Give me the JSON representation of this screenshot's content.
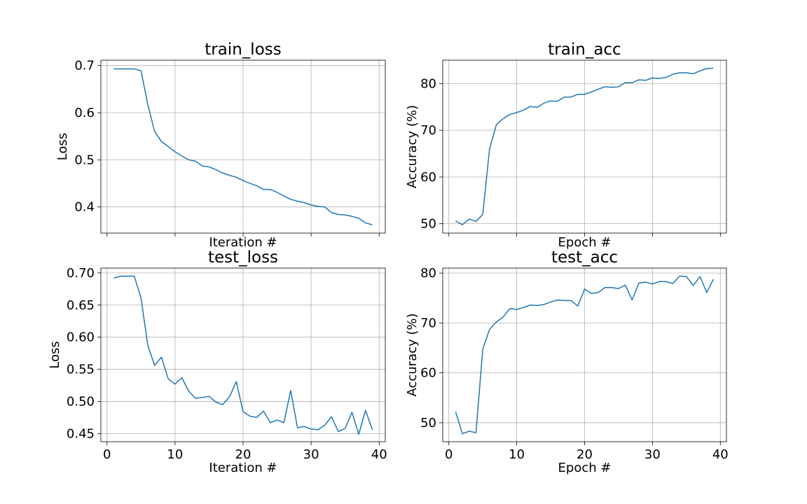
{
  "colors": {
    "series": "#1f77b4",
    "grid": "#b0b0b0",
    "axis": "#000000"
  },
  "chart_data": [
    {
      "id": "train_loss",
      "type": "line",
      "title": "train_loss",
      "xlabel": "Iteration #",
      "ylabel": "Loss",
      "grid": true,
      "xlim": [
        -0.9,
        40.9
      ],
      "ylim": [
        0.3444,
        0.7114
      ],
      "xticks": [
        0,
        10,
        20,
        30,
        40
      ],
      "show_xtick_labels": false,
      "yticks": [
        0.4,
        0.5,
        0.6,
        0.7
      ],
      "ytick_labels": [
        "0.4",
        "0.5",
        "0.6",
        "0.7"
      ],
      "series": [
        {
          "x": [
            1,
            2,
            3,
            4,
            5,
            6,
            7,
            8,
            9,
            10,
            11,
            12,
            13,
            14,
            15,
            16,
            17,
            18,
            19,
            20,
            21,
            22,
            23,
            24,
            25,
            26,
            27,
            28,
            29,
            30,
            31,
            32,
            33,
            34,
            35,
            36,
            37,
            38,
            39
          ],
          "values": [
            0.693,
            0.693,
            0.693,
            0.693,
            0.689,
            0.617,
            0.56,
            0.539,
            0.528,
            0.517,
            0.508,
            0.5,
            0.497,
            0.487,
            0.485,
            0.479,
            0.472,
            0.467,
            0.463,
            0.456,
            0.45,
            0.445,
            0.437,
            0.437,
            0.431,
            0.423,
            0.416,
            0.412,
            0.409,
            0.404,
            0.401,
            0.4,
            0.388,
            0.384,
            0.383,
            0.38,
            0.376,
            0.366,
            0.362
          ]
        }
      ]
    },
    {
      "id": "train_acc",
      "type": "line",
      "title": "train_acc",
      "xlabel": "Epoch #",
      "ylabel": "Accuracy (%)",
      "grid": true,
      "xlim": [
        -0.9,
        40.9
      ],
      "ylim": [
        48.0,
        85.0
      ],
      "xticks": [
        0,
        10,
        20,
        30,
        40
      ],
      "show_xtick_labels": false,
      "yticks": [
        50,
        60,
        70,
        80
      ],
      "ytick_labels": [
        "50",
        "60",
        "70",
        "80"
      ],
      "series": [
        {
          "x": [
            1,
            2,
            3,
            4,
            5,
            6,
            7,
            8,
            9,
            10,
            11,
            12,
            13,
            14,
            15,
            16,
            17,
            18,
            19,
            20,
            21,
            22,
            23,
            24,
            25,
            26,
            27,
            28,
            29,
            30,
            31,
            32,
            33,
            34,
            35,
            36,
            37,
            38,
            39
          ],
          "values": [
            50.6,
            49.8,
            51.0,
            50.5,
            52.0,
            66.0,
            71.2,
            72.5,
            73.4,
            73.8,
            74.3,
            75.1,
            74.9,
            75.8,
            76.3,
            76.2,
            77.1,
            77.1,
            77.7,
            77.7,
            78.2,
            78.8,
            79.3,
            79.2,
            79.3,
            80.2,
            80.2,
            80.8,
            80.7,
            81.2,
            81.1,
            81.3,
            82.0,
            82.3,
            82.3,
            82.1,
            82.7,
            83.2,
            83.3
          ]
        }
      ]
    },
    {
      "id": "test_loss",
      "type": "line",
      "title": "test_loss",
      "xlabel": "Iteration #",
      "ylabel": "Loss",
      "grid": true,
      "xlim": [
        -0.9,
        40.9
      ],
      "ylim": [
        0.4373,
        0.7075
      ],
      "xticks": [
        0,
        10,
        20,
        30,
        40
      ],
      "show_xtick_labels": true,
      "xtick_labels": [
        "0",
        "10",
        "20",
        "30",
        "40"
      ],
      "yticks": [
        0.45,
        0.5,
        0.55,
        0.6,
        0.65,
        0.7
      ],
      "ytick_labels": [
        "0.45",
        "0.50",
        "0.55",
        "0.60",
        "0.65",
        "0.70"
      ],
      "series": [
        {
          "x": [
            1,
            2,
            3,
            4,
            5,
            6,
            7,
            8,
            9,
            10,
            11,
            12,
            13,
            14,
            15,
            16,
            17,
            18,
            19,
            20,
            21,
            22,
            23,
            24,
            25,
            26,
            27,
            28,
            29,
            30,
            31,
            32,
            33,
            34,
            35,
            36,
            37,
            38,
            39
          ],
          "values": [
            0.692,
            0.695,
            0.695,
            0.695,
            0.661,
            0.587,
            0.556,
            0.569,
            0.535,
            0.527,
            0.537,
            0.516,
            0.505,
            0.506,
            0.508,
            0.499,
            0.495,
            0.507,
            0.531,
            0.484,
            0.477,
            0.475,
            0.485,
            0.467,
            0.471,
            0.467,
            0.517,
            0.459,
            0.461,
            0.457,
            0.456,
            0.463,
            0.476,
            0.453,
            0.458,
            0.483,
            0.449,
            0.486,
            0.456
          ]
        }
      ]
    },
    {
      "id": "test_acc",
      "type": "line",
      "title": "test_acc",
      "xlabel": "Epoch #",
      "ylabel": "Accuracy (%)",
      "grid": true,
      "xlim": [
        -0.9,
        40.9
      ],
      "ylim": [
        46.2,
        81.0
      ],
      "xticks": [
        0,
        10,
        20,
        30,
        40
      ],
      "show_xtick_labels": true,
      "xtick_labels": [
        "0",
        "10",
        "20",
        "30",
        "40"
      ],
      "yticks": [
        50,
        60,
        70,
        80
      ],
      "ytick_labels": [
        "50",
        "60",
        "70",
        "80"
      ],
      "series": [
        {
          "x": [
            1,
            2,
            3,
            4,
            5,
            6,
            7,
            8,
            9,
            10,
            11,
            12,
            13,
            14,
            15,
            16,
            17,
            18,
            19,
            20,
            21,
            22,
            23,
            24,
            25,
            26,
            27,
            28,
            29,
            30,
            31,
            32,
            33,
            34,
            35,
            36,
            37,
            38,
            39
          ],
          "values": [
            52.2,
            47.8,
            48.3,
            48.0,
            64.8,
            68.7,
            70.2,
            71.2,
            72.9,
            72.7,
            73.1,
            73.6,
            73.5,
            73.7,
            74.2,
            74.6,
            74.5,
            74.5,
            73.4,
            76.8,
            75.9,
            76.1,
            77.1,
            77.1,
            76.9,
            77.6,
            74.6,
            78.0,
            78.2,
            77.8,
            78.3,
            78.3,
            77.9,
            79.4,
            79.3,
            77.5,
            79.3,
            76.1,
            78.8
          ]
        }
      ]
    }
  ]
}
